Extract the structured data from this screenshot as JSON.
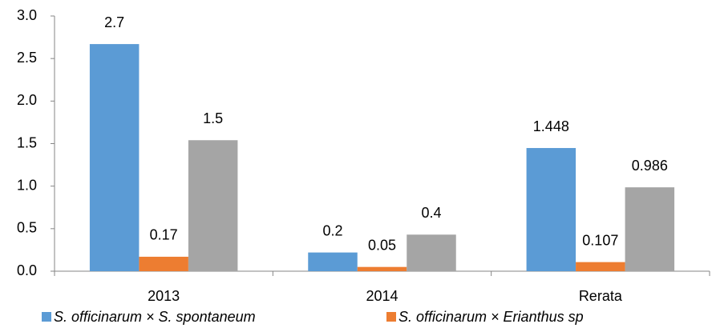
{
  "chart_data": {
    "type": "bar",
    "categories": [
      "2013",
      "2014",
      "Rerata"
    ],
    "series": [
      {
        "name": "S. officinarum × S. spontaneum",
        "color": "#5b9bd5",
        "values": [
          2.67,
          0.22,
          1.448
        ],
        "value_labels": [
          "2.7",
          "0.2",
          "1.448"
        ]
      },
      {
        "name": "S. officinarum × Erianthus sp",
        "color": "#ed7d31",
        "values": [
          0.17,
          0.05,
          0.107
        ]
      },
      {
        "color": "#a5a5a5",
        "values": [
          1.54,
          0.43,
          0.986
        ],
        "value_labels": [
          "1.5",
          "0.4",
          "0.986"
        ]
      }
    ],
    "ylim": [
      0,
      3
    ],
    "yticks": [
      {
        "value": 0,
        "label": "0.0"
      },
      0.5,
      {
        "value": 1,
        "label": "1.0"
      },
      1.5,
      {
        "value": 2,
        "label": "2.0"
      },
      2.5,
      {
        "value": 3,
        "label": "3.0"
      }
    ],
    "grid": false,
    "legend": "bottom"
  }
}
